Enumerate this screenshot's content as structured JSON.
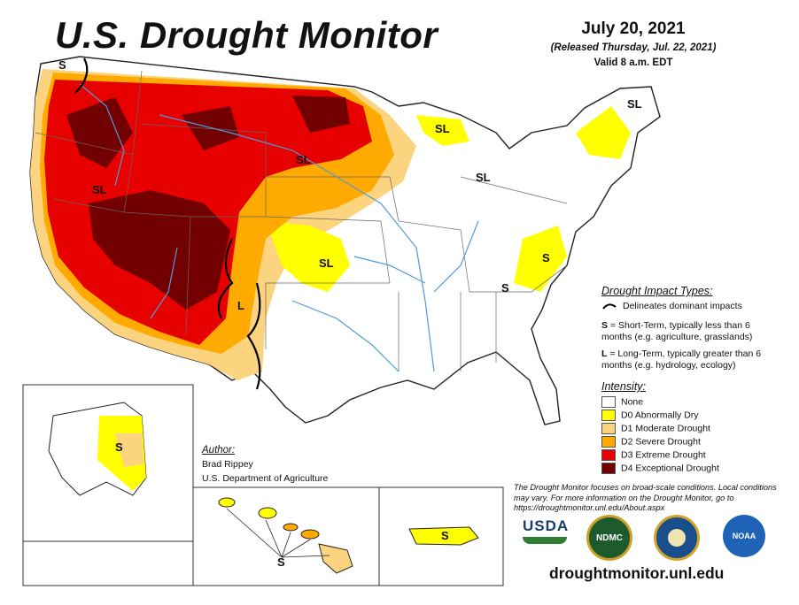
{
  "title": "U.S. Drought Monitor",
  "date": "July 20, 2021",
  "released": "(Released Thursday, Jul. 22, 2021)",
  "valid": "Valid 8 a.m. EDT",
  "map_labels": {
    "s_nw": "S",
    "sl_mt": "SL",
    "sl_wi": "SL",
    "sl_mi": "SL",
    "sl_me": "SL",
    "sl_nd": "SL",
    "sl_ut": "SL",
    "sl_ks": "SL",
    "s_va": "S",
    "s_tn": "S",
    "l_nm": "L",
    "s_ak": "S",
    "s_hi": "S",
    "s_pr": "S"
  },
  "impact_types": {
    "heading": "Drought Impact Types:",
    "delineates": "Delineates dominant impacts",
    "short_term_key": "S",
    "short_term_text": " = Short-Term, typically less than 6 months (e.g. agriculture, grasslands)",
    "long_term_key": "L",
    "long_term_text": " = Long-Term, typically greater than 6 months (e.g. hydrology, ecology)"
  },
  "intensity": {
    "heading": "Intensity:",
    "items": [
      {
        "label": "None",
        "color": "#ffffff"
      },
      {
        "label": "D0 Abnormally Dry",
        "color": "#ffff00"
      },
      {
        "label": "D1 Moderate Drought",
        "color": "#fcd37f"
      },
      {
        "label": "D2 Severe Drought",
        "color": "#ffaa00"
      },
      {
        "label": "D3 Extreme Drought",
        "color": "#e60000"
      },
      {
        "label": "D4 Exceptional Drought",
        "color": "#730000"
      }
    ]
  },
  "author": {
    "heading": "Author:",
    "name": "Brad Rippey",
    "org": "U.S. Department of Agriculture"
  },
  "note": "The Drought Monitor focuses on broad-scale conditions. Local conditions may vary. For more information on the Drought Monitor, go to https://droughtmonitor.unl.edu/About.aspx",
  "url": "droughtmonitor.unl.edu",
  "logos": {
    "usda": "USDA",
    "ndmc": "NDMC",
    "noaa": "NOAA"
  },
  "colors": {
    "none": "#ffffff",
    "d0": "#ffff00",
    "d1": "#fcd37f",
    "d2": "#ffaa00",
    "d3": "#e60000",
    "d4": "#730000",
    "river": "#4f9bdc",
    "border": "#222222"
  }
}
